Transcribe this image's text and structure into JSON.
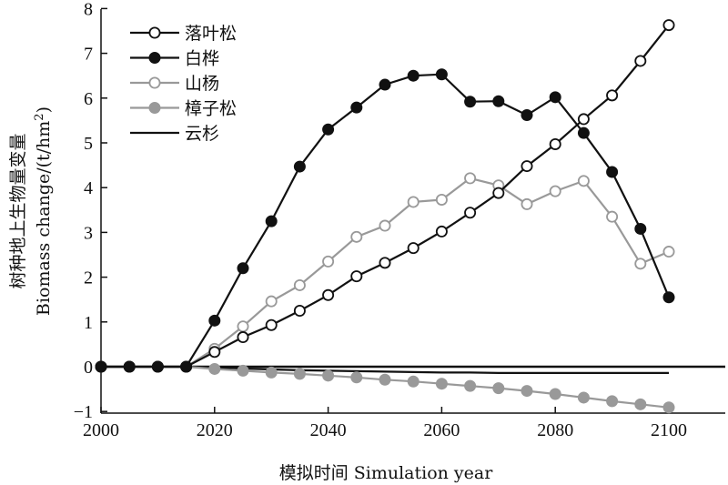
{
  "chart_data": {
    "type": "line",
    "xlabel": "模拟时间 Simulation year",
    "ylabel_line1": "树种地上生物量变量",
    "ylabel_line2_prefix": "Biomass change/(t/hm",
    "ylabel_line2_sup": "2",
    "ylabel_line2_suffix": ")",
    "xlim": [
      2000,
      2111
    ],
    "ylim": [
      -1,
      8
    ],
    "x_ticks": [
      2000,
      2020,
      2040,
      2060,
      2080,
      2100
    ],
    "y_ticks": [
      -1,
      0,
      1,
      2,
      3,
      4,
      5,
      6,
      7,
      8
    ],
    "zero_line": true,
    "legend_position": "top-left",
    "x": [
      2000,
      2005,
      2010,
      2015,
      2020,
      2025,
      2030,
      2035,
      2040,
      2045,
      2050,
      2055,
      2060,
      2065,
      2070,
      2075,
      2080,
      2085,
      2090,
      2095,
      2100
    ],
    "series": [
      {
        "name": "落叶松",
        "color": "#111111",
        "marker": "open-circle",
        "values": [
          0,
          0,
          0,
          0,
          0.33,
          0.66,
          0.93,
          1.25,
          1.6,
          2.02,
          2.32,
          2.65,
          3.02,
          3.44,
          3.88,
          4.48,
          4.97,
          5.53,
          6.06,
          6.83,
          7.63
        ]
      },
      {
        "name": "白桦",
        "color": "#111111",
        "marker": "filled-circle",
        "values": [
          0,
          0,
          0,
          0,
          1.03,
          2.2,
          3.25,
          4.47,
          5.3,
          5.79,
          6.3,
          6.5,
          6.53,
          5.92,
          5.93,
          5.62,
          6.02,
          5.22,
          4.35,
          3.08,
          1.55
        ]
      },
      {
        "name": "山杨",
        "color": "#999999",
        "marker": "open-circle",
        "values": [
          0,
          0,
          0,
          0,
          0.4,
          0.9,
          1.46,
          1.82,
          2.35,
          2.9,
          3.15,
          3.68,
          3.73,
          4.21,
          4.05,
          3.63,
          3.92,
          4.15,
          3.35,
          2.3,
          2.57
        ]
      },
      {
        "name": "樟子松",
        "color": "#999999",
        "marker": "filled-circle",
        "values": [
          0,
          0,
          0,
          0,
          -0.05,
          -0.09,
          -0.13,
          -0.16,
          -0.2,
          -0.24,
          -0.29,
          -0.33,
          -0.38,
          -0.43,
          -0.48,
          -0.54,
          -0.61,
          -0.69,
          -0.77,
          -0.84,
          -0.91
        ]
      },
      {
        "name": "云杉",
        "color": "#111111",
        "marker": "none",
        "values": [
          0,
          0,
          0,
          0,
          -0.02,
          -0.04,
          -0.06,
          -0.08,
          -0.09,
          -0.1,
          -0.11,
          -0.12,
          -0.13,
          -0.13,
          -0.14,
          -0.14,
          -0.14,
          -0.14,
          -0.14,
          -0.14,
          -0.14
        ]
      }
    ]
  }
}
